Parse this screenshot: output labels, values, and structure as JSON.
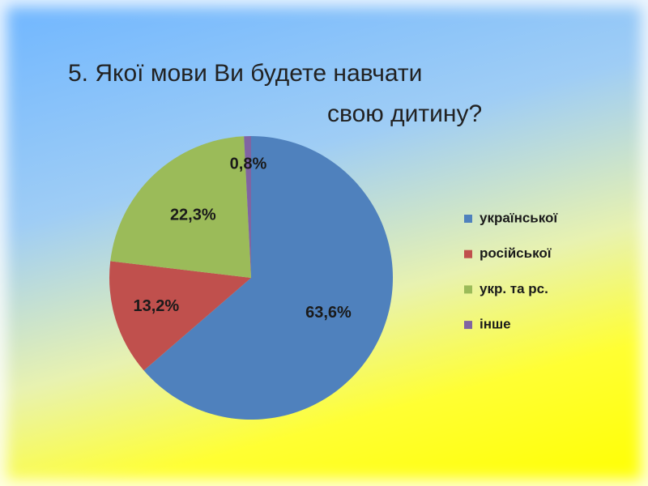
{
  "chart_data": {
    "type": "pie",
    "title": [
      "5. Якої мови Ви будете навчати",
      "свою дитину?"
    ],
    "categories": [
      "української",
      "російської",
      "укр. та рс.",
      "інше"
    ],
    "values": [
      63.6,
      13.2,
      22.3,
      0.8
    ],
    "value_labels": [
      "63,6%",
      "13,2%",
      "22,3%",
      "0,8%"
    ],
    "colors": [
      "#4f81bd",
      "#c0504d",
      "#9bbb59",
      "#8064a2"
    ],
    "legend": "right"
  }
}
